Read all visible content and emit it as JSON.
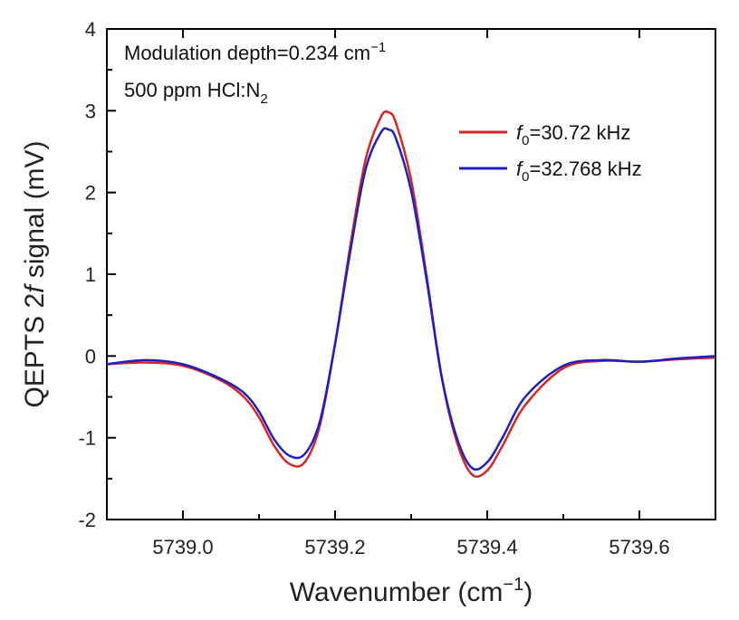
{
  "chart_data": {
    "type": "line",
    "xlabel_main": "Wavenumber (cm",
    "xlabel_sup": "−1",
    "xlabel_tail": ")",
    "ylabel_pre": "QEPTS 2",
    "ylabel_ital": "f",
    "ylabel_post": " signal (mV)",
    "xlim": [
      5738.9,
      5739.7
    ],
    "ylim": [
      -2,
      4
    ],
    "xticks": [
      5739.0,
      5739.2,
      5739.4,
      5739.6
    ],
    "xtick_labels": [
      "5739.0",
      "5739.2",
      "5739.4",
      "5739.6"
    ],
    "yticks": [
      -2,
      -1,
      0,
      1,
      2,
      3,
      4
    ],
    "ytick_labels": [
      "-2",
      "-1",
      "0",
      "1",
      "2",
      "3",
      "4"
    ],
    "annotations": {
      "line1_main": "Modulation depth=0.234 cm",
      "line1_sup": "−1",
      "line2_main": "500 ppm HCl:N",
      "line2_sub": "2"
    },
    "series": [
      {
        "name_var": "f",
        "name_sub": "0",
        "name_rest": "=30.72 kHz",
        "color": "#d62728",
        "x": [
          5738.9,
          5738.95,
          5739.0,
          5739.05,
          5739.08,
          5739.1,
          5739.12,
          5739.14,
          5739.16,
          5739.18,
          5739.2,
          5739.22,
          5739.24,
          5739.26,
          5739.27,
          5739.28,
          5739.3,
          5739.32,
          5739.34,
          5739.36,
          5739.38,
          5739.4,
          5739.42,
          5739.45,
          5739.5,
          5739.55,
          5739.6,
          5739.65,
          5739.7
        ],
        "y": [
          -0.1,
          -0.08,
          -0.12,
          -0.3,
          -0.5,
          -0.75,
          -1.1,
          -1.32,
          -1.3,
          -0.85,
          0.15,
          1.35,
          2.4,
          2.92,
          2.98,
          2.85,
          2.15,
          1.0,
          -0.25,
          -1.05,
          -1.45,
          -1.4,
          -1.1,
          -0.6,
          -0.15,
          -0.06,
          -0.07,
          -0.04,
          -0.02
        ]
      },
      {
        "name_var": "f",
        "name_sub": "0",
        "name_rest": "=32.768 kHz",
        "color": "#1f1fbf",
        "x": [
          5738.9,
          5738.95,
          5739.0,
          5739.05,
          5739.08,
          5739.1,
          5739.12,
          5739.14,
          5739.16,
          5739.18,
          5739.2,
          5739.22,
          5739.24,
          5739.26,
          5739.27,
          5739.28,
          5739.3,
          5739.32,
          5739.34,
          5739.36,
          5739.38,
          5739.4,
          5739.42,
          5739.45,
          5739.5,
          5739.55,
          5739.6,
          5739.65,
          5739.7
        ],
        "y": [
          -0.1,
          -0.05,
          -0.1,
          -0.28,
          -0.45,
          -0.68,
          -1.02,
          -1.22,
          -1.2,
          -0.8,
          0.15,
          1.28,
          2.28,
          2.73,
          2.77,
          2.66,
          2.02,
          0.95,
          -0.25,
          -1.0,
          -1.37,
          -1.3,
          -1.0,
          -0.5,
          -0.12,
          -0.05,
          -0.07,
          -0.03,
          0.0
        ]
      }
    ]
  }
}
